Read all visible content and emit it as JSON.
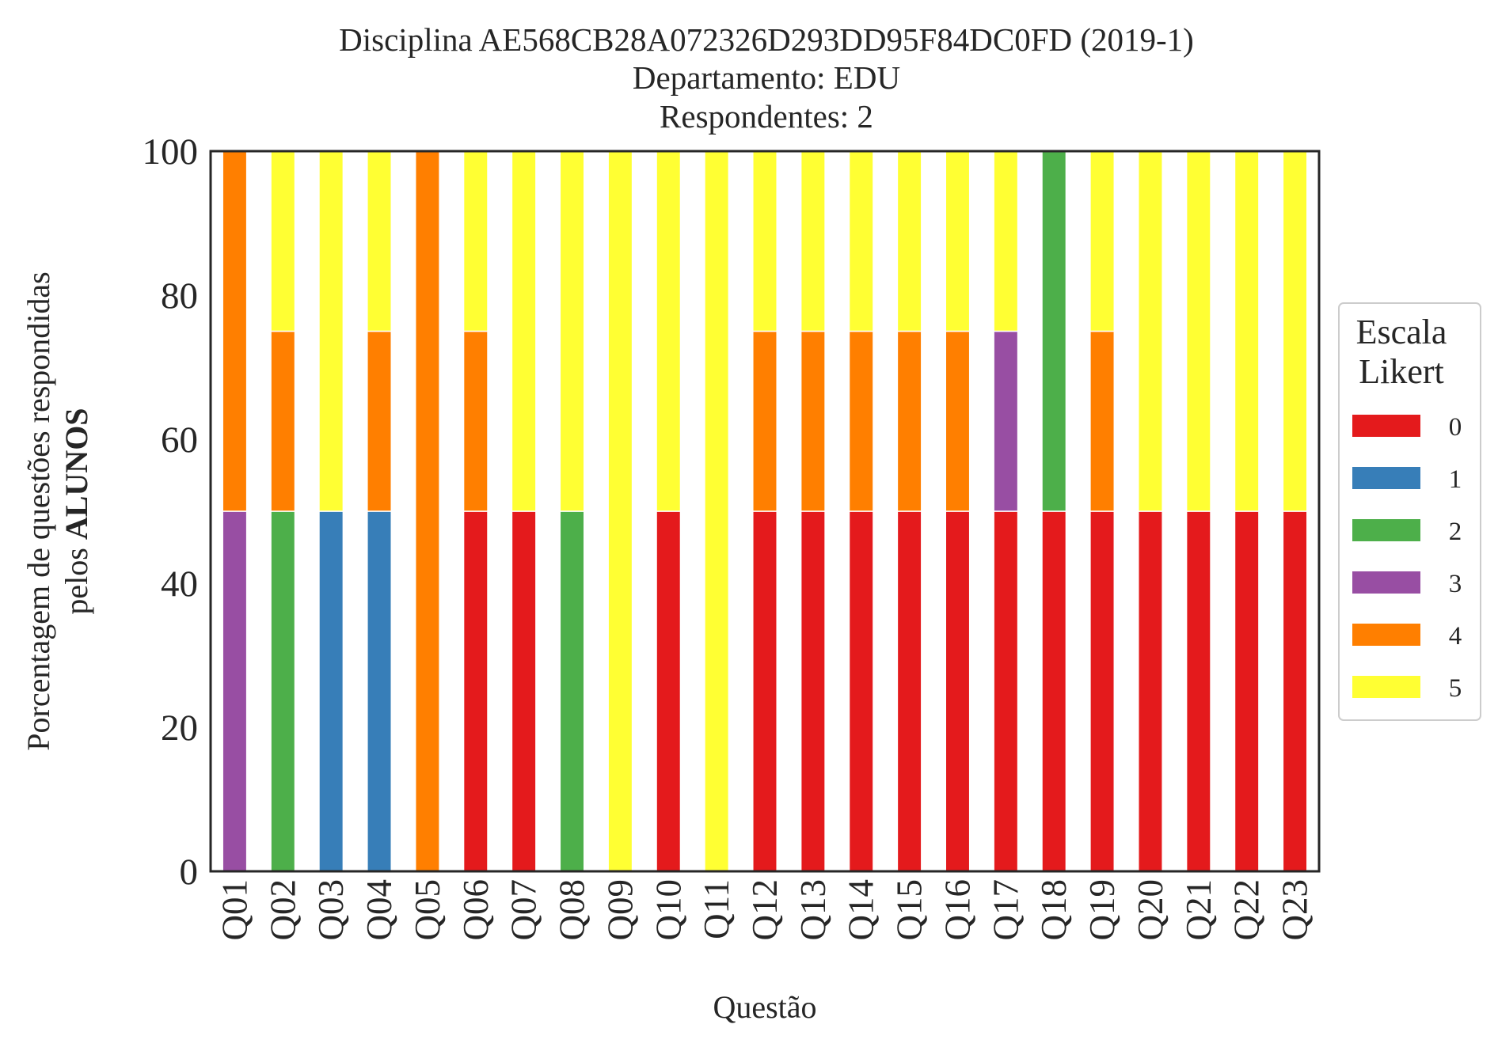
{
  "chart_data": {
    "type": "bar",
    "stacked": true,
    "title": [
      "Disciplina AE568CB28A072326D293DD95F84DC0FD (2019-1)",
      "Departamento: EDU",
      "Respondentes: 2"
    ],
    "xlabel": "Questão",
    "ylabel_line1": "Porcentagem de questões respondidas",
    "ylabel_line2_prefix": "pelos ",
    "ylabel_line2_bold": "ALUNOS",
    "ylim": [
      0,
      100
    ],
    "yticks": [
      "0",
      "20",
      "40",
      "60",
      "80",
      "100"
    ],
    "grid": false,
    "legend_position": "center-right",
    "legend_title": [
      "Escala",
      "Likert"
    ],
    "categories": [
      "Q01",
      "Q02",
      "Q03",
      "Q04",
      "Q05",
      "Q06",
      "Q07",
      "Q08",
      "Q09",
      "Q10",
      "Q11",
      "Q12",
      "Q13",
      "Q14",
      "Q15",
      "Q16",
      "Q17",
      "Q18",
      "Q19",
      "Q20",
      "Q21",
      "Q22",
      "Q23"
    ],
    "series": [
      {
        "name": "0",
        "color": "#e41a1c",
        "values": [
          0,
          0,
          0,
          0,
          0,
          50,
          50,
          0,
          0,
          50,
          0,
          50,
          50,
          50,
          50,
          50,
          50,
          50,
          50,
          50,
          50,
          50,
          50
        ]
      },
      {
        "name": "1",
        "color": "#377eb8",
        "values": [
          0,
          0,
          50,
          50,
          0,
          0,
          0,
          0,
          0,
          0,
          0,
          0,
          0,
          0,
          0,
          0,
          0,
          0,
          0,
          0,
          0,
          0,
          0
        ]
      },
      {
        "name": "2",
        "color": "#4daf4a",
        "values": [
          0,
          50,
          0,
          0,
          0,
          0,
          0,
          50,
          0,
          0,
          0,
          0,
          0,
          0,
          0,
          0,
          0,
          50,
          0,
          0,
          0,
          0,
          0
        ]
      },
      {
        "name": "3",
        "color": "#984ea3",
        "values": [
          50,
          0,
          0,
          0,
          0,
          0,
          0,
          0,
          0,
          0,
          0,
          0,
          0,
          0,
          0,
          0,
          25,
          0,
          0,
          0,
          0,
          0,
          0
        ]
      },
      {
        "name": "4",
        "color": "#ff7f00",
        "values": [
          50,
          25,
          0,
          25,
          100,
          25,
          0,
          0,
          0,
          0,
          0,
          25,
          25,
          25,
          25,
          25,
          0,
          0,
          25,
          0,
          0,
          0,
          0
        ]
      },
      {
        "name": "5",
        "color": "#ffff33",
        "values": [
          0,
          25,
          50,
          25,
          0,
          25,
          50,
          50,
          100,
          50,
          100,
          25,
          25,
          25,
          25,
          25,
          25,
          0,
          25,
          50,
          50,
          50,
          50
        ]
      }
    ]
  }
}
